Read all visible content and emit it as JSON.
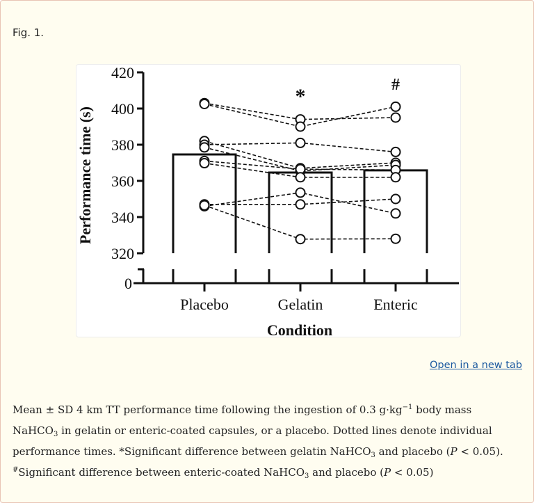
{
  "figure": {
    "label": "Fig. 1.",
    "open_link": "Open in a new tab"
  },
  "caption": {
    "segments": [
      "Mean ± SD 4  km TT performance time following the ingestion of 0.3  g·kg",
      "−1",
      " body mass NaHCO",
      "3",
      " in gelatin or enteric-coated capsules, or a placebo. Dotted lines denote individual performance times. *Significant difference between gelatin NaHCO",
      "3",
      " and placebo (",
      "P",
      " < 0.05). ",
      "#",
      "Significant difference between enteric-coated NaHCO",
      "3",
      " and placebo (",
      "P",
      " < 0.05)"
    ]
  },
  "chart_data": {
    "type": "bar",
    "title": "",
    "xlabel": "Condition",
    "ylabel": "Performance time (s)",
    "categories": [
      "Placebo",
      "Gelatin",
      "Enteric"
    ],
    "values": [
      374.6,
      364.6,
      365.8
    ],
    "yticks": [
      0,
      320,
      340,
      360,
      380,
      400,
      420
    ],
    "ylim": [
      320,
      420
    ],
    "axis_break": true,
    "grid": false,
    "annotations": [
      {
        "category": "Gelatin",
        "symbol": "*",
        "meaning": "Significant difference vs placebo (P < 0.05)"
      },
      {
        "category": "Enteric",
        "symbol": "#",
        "meaning": "Significant difference vs placebo (P < 0.05)"
      }
    ],
    "individual_lines": [
      {
        "values": [
          403.0,
          394.0,
          395.0
        ]
      },
      {
        "values": [
          402.5,
          390.0,
          401.0
        ]
      },
      {
        "values": [
          382.0,
          367.0,
          370.0
        ]
      },
      {
        "values": [
          380.0,
          381.0,
          376.0
        ]
      },
      {
        "values": [
          378.5,
          365.5,
          368.8
        ]
      },
      {
        "values": [
          371.0,
          366.5,
          366.0
        ]
      },
      {
        "values": [
          369.8,
          362.0,
          362.0
        ]
      },
      {
        "values": [
          347.0,
          347.0,
          350.0
        ]
      },
      {
        "values": [
          346.0,
          353.5,
          342.0
        ]
      },
      {
        "values": [
          346.5,
          327.8,
          328.0
        ]
      }
    ]
  }
}
